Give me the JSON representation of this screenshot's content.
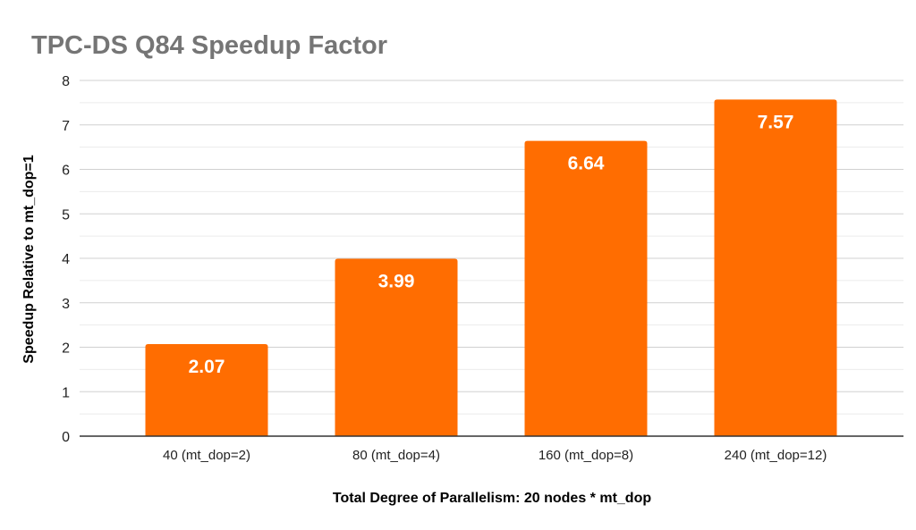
{
  "chart_data": {
    "type": "bar",
    "title": "TPC-DS Q84 Speedup Factor",
    "xlabel": "Total Degree of Parallelism: 20 nodes * mt_dop",
    "ylabel": "Speedup Relative to mt_dop=1",
    "categories": [
      "40 (mt_dop=2)",
      "80 (mt_dop=4)",
      "160 (mt_dop=8)",
      "240 (mt_dop=12)"
    ],
    "values": [
      2.07,
      3.99,
      6.64,
      7.57
    ],
    "data_labels": [
      "2.07",
      "3.99",
      "6.64",
      "7.57"
    ],
    "ylim": [
      0,
      8
    ],
    "yticks": [
      "0",
      "1",
      "2",
      "3",
      "4",
      "5",
      "6",
      "7",
      "8"
    ],
    "grid": true,
    "legend": "none",
    "bar_color": "#ff6d01"
  }
}
